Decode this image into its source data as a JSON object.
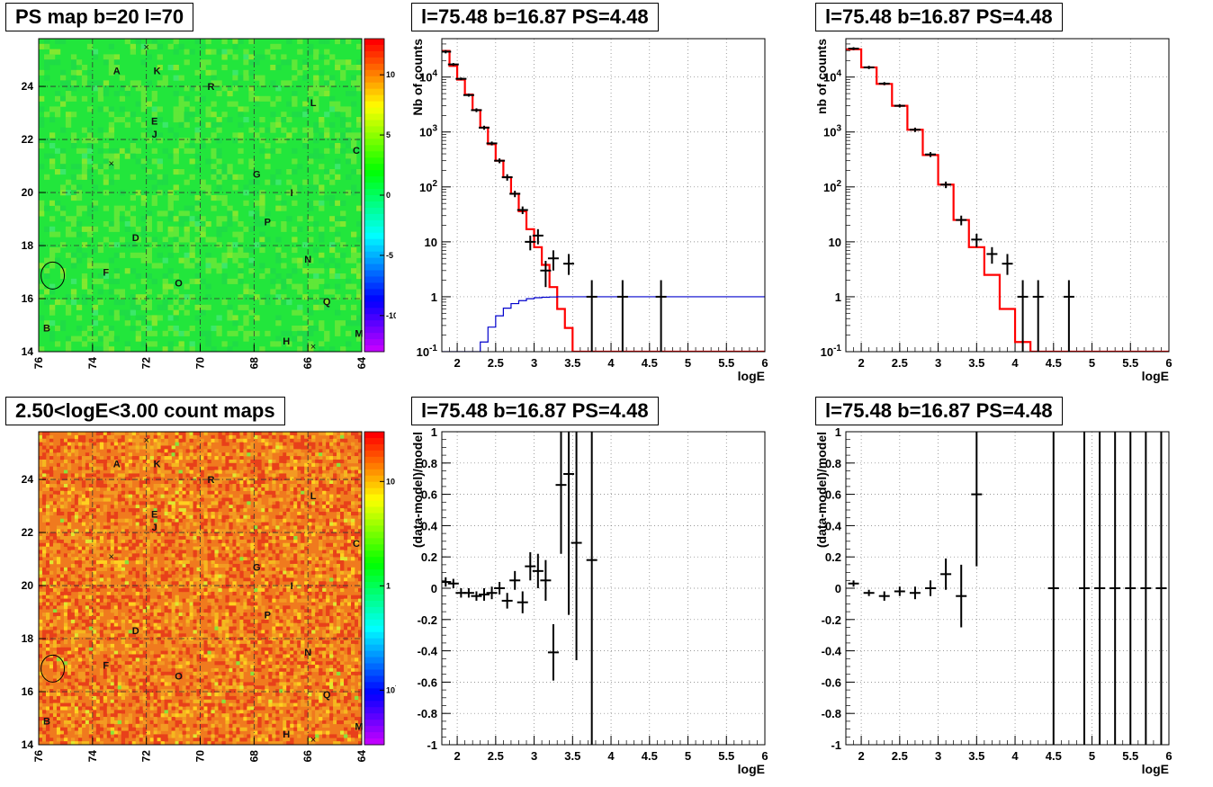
{
  "chart_data": [
    {
      "id": "map_top",
      "type": "heatmap",
      "title": "PS map b=20 l=70",
      "x_ticks": [
        "76",
        "74",
        "72",
        "70",
        "68",
        "66",
        "64"
      ],
      "y_ticks": [
        "14",
        "16",
        "18",
        "20",
        "22",
        "24"
      ],
      "xlim": [
        76,
        64
      ],
      "ylim": [
        14,
        25.8
      ],
      "colorbar": {
        "scale": "linear",
        "ticks": [
          "10",
          "5",
          "0",
          "-5",
          "-10"
        ],
        "range": [
          -13,
          13
        ]
      },
      "base_color": "#22e63c",
      "sources": [
        {
          "label": "A",
          "l": 73.1,
          "b": 24.6
        },
        {
          "label": "K",
          "l": 71.6,
          "b": 24.6
        },
        {
          "label": "R",
          "l": 69.6,
          "b": 24.0
        },
        {
          "label": "L",
          "l": 65.8,
          "b": 23.4
        },
        {
          "label": "E",
          "l": 71.7,
          "b": 22.7
        },
        {
          "label": "J",
          "l": 71.7,
          "b": 22.2
        },
        {
          "label": "C",
          "l": 64.2,
          "b": 21.6
        },
        {
          "label": "G",
          "l": 67.9,
          "b": 20.7
        },
        {
          "label": "I",
          "l": 66.6,
          "b": 20.0
        },
        {
          "label": "P",
          "l": 67.5,
          "b": 18.9
        },
        {
          "label": "D",
          "l": 72.4,
          "b": 18.3
        },
        {
          "label": "N",
          "l": 66.0,
          "b": 17.5
        },
        {
          "label": "F",
          "l": 73.5,
          "b": 17.0
        },
        {
          "label": "O",
          "l": 70.8,
          "b": 16.6
        },
        {
          "label": "Q",
          "l": 65.3,
          "b": 15.9
        },
        {
          "label": "B",
          "l": 75.7,
          "b": 14.9
        },
        {
          "label": "M",
          "l": 64.1,
          "b": 14.7
        },
        {
          "label": "H",
          "l": 66.8,
          "b": 14.4
        }
      ],
      "crosses": [
        {
          "l": 72.0,
          "b": 25.5
        },
        {
          "l": 73.3,
          "b": 21.1
        },
        {
          "l": 65.8,
          "b": 14.2
        }
      ],
      "circle": {
        "l": 75.48,
        "b": 16.87
      }
    },
    {
      "id": "spec_top_mid",
      "type": "line",
      "title": "l=75.48 b=16.87 PS=4.48",
      "xlabel": "logE",
      "ylabel": "Nb of counts",
      "xlim": [
        1.8,
        6
      ],
      "ylim": [
        0.1,
        50000
      ],
      "yscale": "log",
      "x_ticks": [
        "2",
        "2.5",
        "3",
        "3.5",
        "4",
        "4.5",
        "5",
        "5.5",
        "6"
      ],
      "y_ticks": [
        "10^{-1}",
        "1",
        "10",
        "10^{2}",
        "10^{3}",
        "10^{4}"
      ],
      "series": [
        {
          "type": "step",
          "color": "#ff0000",
          "bins_lo": 1.8,
          "bin_width": 0.1,
          "values": [
            30000,
            16000,
            9000,
            4800,
            2500,
            1200,
            600,
            300,
            150,
            75,
            36,
            17,
            8,
            3.8,
            1.5,
            0.6,
            0.27,
            0.1,
            0.1,
            0.1,
            0.1,
            0.1,
            0.1,
            0.1,
            0.1,
            0.1,
            0.1,
            0.1,
            0.1,
            0.1,
            0.1,
            0.1,
            0.1,
            0.1,
            0.1,
            0.1,
            0.1,
            0.1,
            0.1,
            0.1,
            0.1,
            0.1
          ]
        },
        {
          "type": "step",
          "color": "#0000cc",
          "bins_lo": 1.8,
          "bin_width": 0.1,
          "values": [
            0.1,
            0.1,
            0.1,
            0.1,
            0.1,
            0.15,
            0.28,
            0.45,
            0.62,
            0.75,
            0.85,
            0.92,
            0.96,
            0.98,
            0.99,
            1,
            1,
            1,
            1,
            1,
            1,
            1,
            1,
            1,
            1,
            1,
            1,
            1,
            1,
            1,
            1,
            1,
            1,
            1,
            1,
            1,
            1,
            1,
            1,
            1,
            1,
            1
          ]
        },
        {
          "type": "errors",
          "color": "#000000",
          "points": [
            {
              "x": 1.85,
              "y": 29000,
              "lo": 27000,
              "hi": 31000
            },
            {
              "x": 1.95,
              "y": 17000,
              "lo": 16000,
              "hi": 18000
            },
            {
              "x": 2.05,
              "y": 9300,
              "lo": 8800,
              "hi": 9800
            },
            {
              "x": 2.15,
              "y": 4700,
              "lo": 4400,
              "hi": 5000
            },
            {
              "x": 2.25,
              "y": 2500,
              "lo": 2300,
              "hi": 2700
            },
            {
              "x": 2.35,
              "y": 1200,
              "lo": 1100,
              "hi": 1300
            },
            {
              "x": 2.45,
              "y": 620,
              "lo": 570,
              "hi": 670
            },
            {
              "x": 2.55,
              "y": 300,
              "lo": 270,
              "hi": 330
            },
            {
              "x": 2.65,
              "y": 150,
              "lo": 130,
              "hi": 170
            },
            {
              "x": 2.75,
              "y": 75,
              "lo": 65,
              "hi": 85
            },
            {
              "x": 2.85,
              "y": 38,
              "lo": 32,
              "hi": 44
            },
            {
              "x": 2.95,
              "y": 10,
              "lo": 7,
              "hi": 13
            },
            {
              "x": 3.05,
              "y": 13,
              "lo": 9,
              "hi": 17
            },
            {
              "x": 3.15,
              "y": 3,
              "lo": 1.5,
              "hi": 4.5
            },
            {
              "x": 3.25,
              "y": 5,
              "lo": 3,
              "hi": 7
            },
            {
              "x": 3.45,
              "y": 4,
              "lo": 2.5,
              "hi": 6
            },
            {
              "x": 3.75,
              "y": 1,
              "lo": 0.1,
              "hi": 2
            },
            {
              "x": 4.15,
              "y": 1,
              "lo": 0.1,
              "hi": 2
            },
            {
              "x": 4.65,
              "y": 1,
              "lo": 0.1,
              "hi": 2
            }
          ]
        }
      ]
    },
    {
      "id": "spec_top_right",
      "type": "line",
      "title": "l=75.48 b=16.87 PS=4.48",
      "xlabel": "logE",
      "ylabel": "nb of counts",
      "xlim": [
        1.8,
        6
      ],
      "ylim": [
        0.1,
        50000
      ],
      "yscale": "log",
      "x_ticks": [
        "2",
        "2.5",
        "3",
        "3.5",
        "4",
        "4.5",
        "5",
        "5.5",
        "6"
      ],
      "y_ticks": [
        "10^{-1}",
        "1",
        "10",
        "10^{2}",
        "10^{3}",
        "10^{4}"
      ],
      "series": [
        {
          "type": "step",
          "color": "#ff0000",
          "bins_lo": 1.8,
          "bin_width": 0.2,
          "values": [
            32000,
            15000,
            7500,
            3000,
            1100,
            380,
            110,
            25,
            8,
            2.5,
            0.6,
            0.15,
            0.1,
            0.1,
            0.1,
            0.1,
            0.1,
            0.1,
            0.1,
            0.1,
            0.1
          ]
        },
        {
          "type": "errors",
          "color": "#000000",
          "points": [
            {
              "x": 1.9,
              "y": 33000,
              "lo": 31000,
              "hi": 35000
            },
            {
              "x": 2.1,
              "y": 15000,
              "lo": 14000,
              "hi": 16000
            },
            {
              "x": 2.3,
              "y": 7600,
              "lo": 7100,
              "hi": 8100
            },
            {
              "x": 2.5,
              "y": 3000,
              "lo": 2800,
              "hi": 3200
            },
            {
              "x": 2.7,
              "y": 1100,
              "lo": 1000,
              "hi": 1200
            },
            {
              "x": 2.9,
              "y": 390,
              "lo": 350,
              "hi": 430
            },
            {
              "x": 3.1,
              "y": 110,
              "lo": 95,
              "hi": 125
            },
            {
              "x": 3.3,
              "y": 25,
              "lo": 20,
              "hi": 30
            },
            {
              "x": 3.5,
              "y": 11,
              "lo": 8,
              "hi": 14
            },
            {
              "x": 3.7,
              "y": 6,
              "lo": 4,
              "hi": 8
            },
            {
              "x": 3.9,
              "y": 4,
              "lo": 2.5,
              "hi": 6
            },
            {
              "x": 4.1,
              "y": 1,
              "lo": 0.1,
              "hi": 2
            },
            {
              "x": 4.3,
              "y": 1,
              "lo": 0.1,
              "hi": 2
            },
            {
              "x": 4.7,
              "y": 1,
              "lo": 0.1,
              "hi": 2
            }
          ]
        }
      ]
    },
    {
      "id": "map_bottom",
      "type": "heatmap",
      "title": "2.50<logE<3.00 count maps",
      "x_ticks": [
        "76",
        "74",
        "72",
        "70",
        "68",
        "66",
        "64"
      ],
      "y_ticks": [
        "14",
        "16",
        "18",
        "20",
        "22",
        "24"
      ],
      "xlim": [
        76,
        64
      ],
      "ylim": [
        14,
        25.8
      ],
      "colorbar": {
        "scale": "log",
        "ticks": [
          "10",
          "1",
          "10^{-1}"
        ],
        "range": [
          0.03,
          30
        ]
      },
      "base_color": "#f07a1e",
      "sources": [
        {
          "label": "A",
          "l": 73.1,
          "b": 24.6
        },
        {
          "label": "K",
          "l": 71.6,
          "b": 24.6
        },
        {
          "label": "R",
          "l": 69.6,
          "b": 24.0
        },
        {
          "label": "L",
          "l": 65.8,
          "b": 23.4
        },
        {
          "label": "E",
          "l": 71.7,
          "b": 22.7
        },
        {
          "label": "J",
          "l": 71.7,
          "b": 22.2
        },
        {
          "label": "C",
          "l": 64.2,
          "b": 21.6
        },
        {
          "label": "G",
          "l": 67.9,
          "b": 20.7
        },
        {
          "label": "I",
          "l": 66.6,
          "b": 20.0
        },
        {
          "label": "P",
          "l": 67.5,
          "b": 18.9
        },
        {
          "label": "D",
          "l": 72.4,
          "b": 18.3
        },
        {
          "label": "N",
          "l": 66.0,
          "b": 17.5
        },
        {
          "label": "F",
          "l": 73.5,
          "b": 17.0
        },
        {
          "label": "O",
          "l": 70.8,
          "b": 16.6
        },
        {
          "label": "Q",
          "l": 65.3,
          "b": 15.9
        },
        {
          "label": "B",
          "l": 75.7,
          "b": 14.9
        },
        {
          "label": "M",
          "l": 64.1,
          "b": 14.7
        },
        {
          "label": "H",
          "l": 66.8,
          "b": 14.4
        }
      ],
      "crosses": [
        {
          "l": 72.0,
          "b": 25.5
        },
        {
          "l": 73.3,
          "b": 21.1
        },
        {
          "l": 65.8,
          "b": 14.2
        }
      ],
      "circle": {
        "l": 75.48,
        "b": 16.87
      }
    },
    {
      "id": "res_bottom_mid",
      "type": "scatter",
      "title": "l=75.48 b=16.87 PS=4.48",
      "xlabel": "logE",
      "ylabel": "(data-model)/model",
      "xlim": [
        1.8,
        6
      ],
      "ylim": [
        -1,
        1
      ],
      "x_ticks": [
        "2",
        "2.5",
        "3",
        "3.5",
        "4",
        "4.5",
        "5",
        "5.5",
        "6"
      ],
      "y_ticks": [
        "-1",
        "-0.8",
        "-0.6",
        "-0.4",
        "-0.2",
        "0",
        "0.2",
        "0.4",
        "0.6",
        "0.8",
        "1"
      ],
      "points": [
        {
          "x": 1.85,
          "y": 0.04,
          "err": 0.03
        },
        {
          "x": 1.95,
          "y": 0.03,
          "err": 0.03
        },
        {
          "x": 2.05,
          "y": -0.03,
          "err": 0.03
        },
        {
          "x": 2.15,
          "y": -0.03,
          "err": 0.03
        },
        {
          "x": 2.25,
          "y": -0.05,
          "err": 0.03
        },
        {
          "x": 2.35,
          "y": -0.04,
          "err": 0.04
        },
        {
          "x": 2.45,
          "y": -0.03,
          "err": 0.04
        },
        {
          "x": 2.55,
          "y": 0.0,
          "err": 0.04
        },
        {
          "x": 2.65,
          "y": -0.08,
          "err": 0.05
        },
        {
          "x": 2.75,
          "y": 0.05,
          "err": 0.06
        },
        {
          "x": 2.85,
          "y": -0.09,
          "err": 0.07
        },
        {
          "x": 2.95,
          "y": 0.14,
          "err": 0.09
        },
        {
          "x": 3.05,
          "y": 0.11,
          "err": 0.11
        },
        {
          "x": 3.15,
          "y": 0.05,
          "err": 0.13
        },
        {
          "x": 3.25,
          "y": -0.41,
          "err": 0.18
        },
        {
          "x": 3.35,
          "y": 0.66,
          "err": 0.44
        },
        {
          "x": 3.45,
          "y": 0.73,
          "err": 0.9
        },
        {
          "x": 3.55,
          "y": 0.29,
          "err": 0.75
        },
        {
          "x": 3.75,
          "y": 0.18,
          "err": 1.4
        }
      ]
    },
    {
      "id": "res_bottom_right",
      "type": "scatter",
      "title": "l=75.48 b=16.87 PS=4.48",
      "xlabel": "logE",
      "ylabel": "(data-model)/model",
      "xlim": [
        1.8,
        6
      ],
      "ylim": [
        -1,
        1
      ],
      "x_ticks": [
        "2",
        "2.5",
        "3",
        "3.5",
        "4",
        "4.5",
        "5",
        "5.5",
        "6"
      ],
      "y_ticks": [
        "-1",
        "-0.8",
        "-0.6",
        "-0.4",
        "-0.2",
        "0",
        "0.2",
        "0.4",
        "0.6",
        "0.8",
        "1"
      ],
      "points": [
        {
          "x": 1.9,
          "y": 0.03,
          "err": 0.02
        },
        {
          "x": 2.1,
          "y": -0.03,
          "err": 0.02
        },
        {
          "x": 2.3,
          "y": -0.05,
          "err": 0.03
        },
        {
          "x": 2.5,
          "y": -0.02,
          "err": 0.03
        },
        {
          "x": 2.7,
          "y": -0.03,
          "err": 0.04
        },
        {
          "x": 2.9,
          "y": 0.0,
          "err": 0.05
        },
        {
          "x": 3.1,
          "y": 0.09,
          "err": 0.1
        },
        {
          "x": 3.3,
          "y": -0.05,
          "err": 0.2
        },
        {
          "x": 3.5,
          "y": 0.6,
          "err": 0.46
        },
        {
          "x": 4.5,
          "y": 0,
          "err": 2
        },
        {
          "x": 4.9,
          "y": 0,
          "err": 2
        },
        {
          "x": 5.1,
          "y": 0,
          "err": 2
        },
        {
          "x": 5.3,
          "y": 0,
          "err": 2
        },
        {
          "x": 5.5,
          "y": 0,
          "err": 2
        },
        {
          "x": 5.7,
          "y": 0,
          "err": 2
        },
        {
          "x": 5.9,
          "y": 0,
          "err": 2
        }
      ]
    }
  ]
}
